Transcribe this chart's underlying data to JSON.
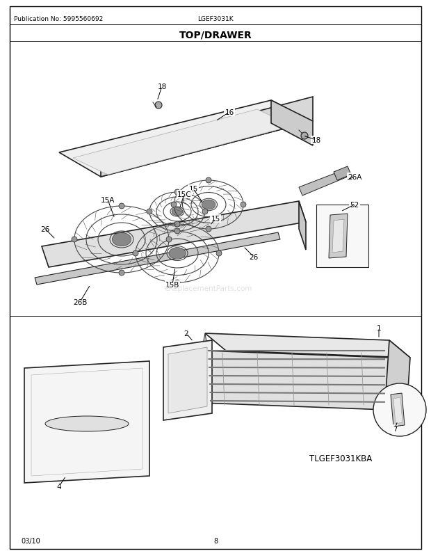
{
  "title": "TOP/DRAWER",
  "pub_no": "Publication No: 5995560692",
  "model": "LGEF3031K",
  "model_diagram": "TLGEF3031KBA",
  "date": "03/10",
  "page": "8",
  "bg_color": "#ffffff",
  "text_color": "#000000",
  "watermark": "eReplacementParts.com"
}
